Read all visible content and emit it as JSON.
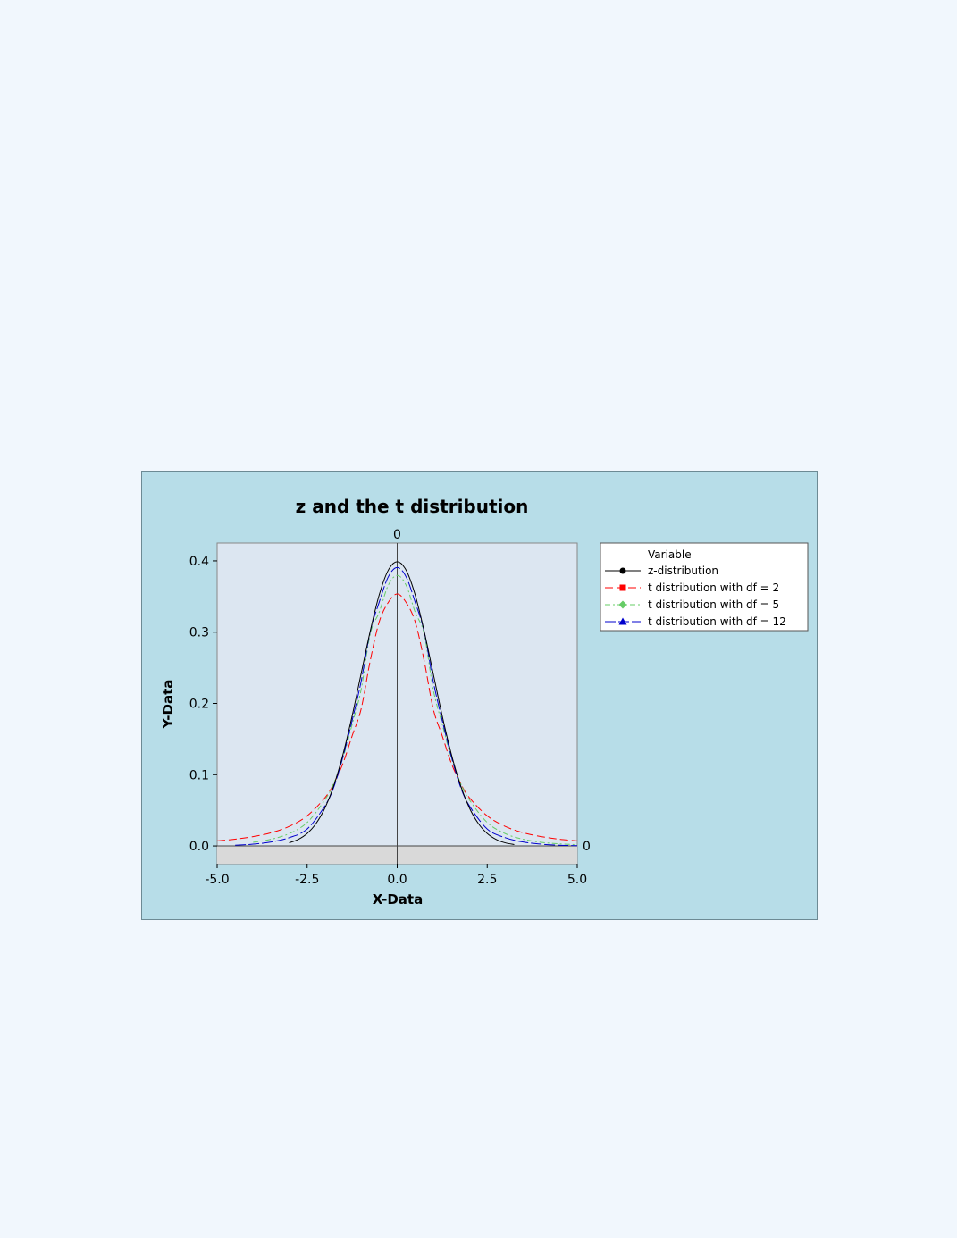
{
  "chart_data": {
    "type": "line",
    "title": "z and the t distribution",
    "xlabel": "X-Data",
    "ylabel": "Y-Data",
    "xlim": [
      -5.0,
      5.0
    ],
    "ylim": [
      -0.025,
      0.425
    ],
    "x_ticks": [
      "-5.0",
      "-2.5",
      "0.0",
      "2.5",
      "5.0"
    ],
    "y_ticks": [
      "0.0",
      "0.1",
      "0.2",
      "0.3",
      "0.4"
    ],
    "reference_lines": {
      "x": {
        "value": 0,
        "label": "0"
      },
      "y": {
        "value": 0,
        "label": "0"
      }
    },
    "legend": {
      "title": "Variable",
      "position": "right"
    },
    "series": [
      {
        "name": "z-distribution",
        "color": "#000000",
        "dash": "",
        "marker": "circle",
        "x": [
          -3.0,
          -2.75,
          -2.5,
          -2.25,
          -2.0,
          -1.75,
          -1.5,
          -1.25,
          -1.0,
          -0.75,
          -0.5,
          -0.25,
          0.0,
          0.25,
          0.5,
          0.75,
          1.0,
          1.25,
          1.5,
          1.75,
          2.0,
          2.25,
          2.5,
          2.75,
          3.0,
          3.25
        ],
        "y": [
          0.0044,
          0.0091,
          0.0175,
          0.0317,
          0.054,
          0.0863,
          0.1295,
          0.1826,
          0.242,
          0.3011,
          0.3521,
          0.3867,
          0.3989,
          0.3867,
          0.3521,
          0.3011,
          0.242,
          0.1826,
          0.1295,
          0.0863,
          0.054,
          0.0317,
          0.0175,
          0.0091,
          0.0044,
          0.002
        ]
      },
      {
        "name": "t distribution with df = 2",
        "color": "#ff0000",
        "dash": "9,4",
        "marker": "square",
        "x": [
          -5.0,
          -4.5,
          -4.0,
          -3.5,
          -3.0,
          -2.5,
          -2.0,
          -1.75,
          -1.5,
          -1.25,
          -1.0,
          -0.75,
          -0.5,
          -0.25,
          0.0,
          0.25,
          0.5,
          0.75,
          1.0,
          1.25,
          1.5,
          1.75,
          2.0,
          2.5,
          3.0,
          3.5,
          4.0,
          4.5,
          5.0
        ],
        "y": [
          0.0071,
          0.0095,
          0.0131,
          0.0185,
          0.0274,
          0.0422,
          0.068,
          0.0887,
          0.1166,
          0.1546,
          0.1925,
          0.2596,
          0.3143,
          0.3415,
          0.3536,
          0.3415,
          0.3143,
          0.2596,
          0.1925,
          0.1546,
          0.1166,
          0.0887,
          0.068,
          0.0422,
          0.0274,
          0.0185,
          0.0131,
          0.0095,
          0.0071
        ]
      },
      {
        "name": "t distribution with df = 5",
        "color": "#66cc66",
        "dash": "6,3,2,3",
        "marker": "diamond",
        "x": [
          -4.0,
          -3.5,
          -3.0,
          -2.5,
          -2.0,
          -1.75,
          -1.5,
          -1.25,
          -1.0,
          -0.75,
          -0.5,
          -0.25,
          0.0,
          0.25,
          0.5,
          0.75,
          1.0,
          1.25,
          1.5,
          1.75,
          2.0,
          2.5,
          3.0,
          3.5,
          4.0,
          4.5,
          5.0
        ],
        "y": [
          0.0051,
          0.0094,
          0.0173,
          0.0329,
          0.0651,
          0.0891,
          0.1245,
          0.1708,
          0.2197,
          0.2973,
          0.3279,
          0.3656,
          0.3796,
          0.3656,
          0.3279,
          0.2973,
          0.2197,
          0.1708,
          0.1245,
          0.0891,
          0.0651,
          0.0329,
          0.0173,
          0.0094,
          0.0051,
          0.003,
          0.0018
        ]
      },
      {
        "name": "t distribution with df = 12",
        "color": "#0000cc",
        "dash": "12,3",
        "marker": "triangle",
        "x": [
          -4.5,
          -4.0,
          -3.5,
          -3.0,
          -2.5,
          -2.0,
          -1.75,
          -1.5,
          -1.25,
          -1.0,
          -0.75,
          -0.5,
          -0.25,
          0.0,
          0.25,
          0.5,
          0.75,
          1.0,
          1.25,
          1.5,
          1.75,
          2.0,
          2.5,
          3.0,
          3.5,
          4.0,
          4.5,
          5.0
        ],
        "y": [
          0.001,
          0.0025,
          0.0056,
          0.0116,
          0.0237,
          0.0567,
          0.0839,
          0.1262,
          0.1762,
          0.2311,
          0.3006,
          0.3419,
          0.3773,
          0.3907,
          0.3773,
          0.3419,
          0.3006,
          0.2311,
          0.1762,
          0.1262,
          0.0839,
          0.0567,
          0.0237,
          0.0116,
          0.0056,
          0.0025,
          0.001,
          0.0004
        ]
      }
    ]
  }
}
